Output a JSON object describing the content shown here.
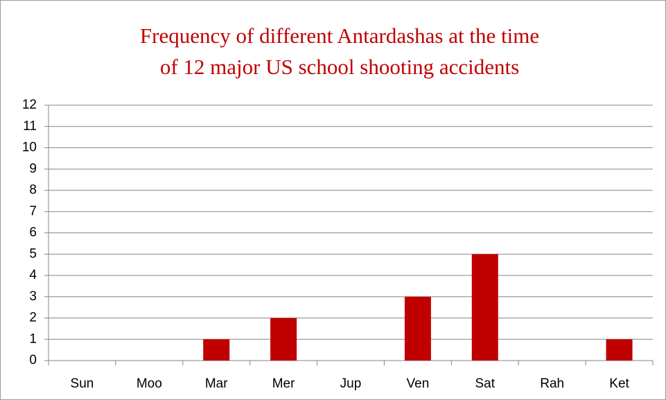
{
  "chart_data": {
    "type": "bar",
    "title": [
      "Frequency of different Antardashas at the time",
      "of 12 major US school shooting accidents"
    ],
    "categories": [
      "Sun",
      "Moo",
      "Mar",
      "Mer",
      "Jup",
      "Ven",
      "Sat",
      "Rah",
      "Ket"
    ],
    "values": [
      0,
      0,
      1,
      2,
      0,
      3,
      5,
      0,
      1
    ],
    "color": "#c00000",
    "ylim": [
      0,
      12
    ],
    "yticks": [
      0,
      1,
      2,
      3,
      4,
      5,
      6,
      7,
      8,
      9,
      10,
      11,
      12
    ],
    "grid": true
  }
}
